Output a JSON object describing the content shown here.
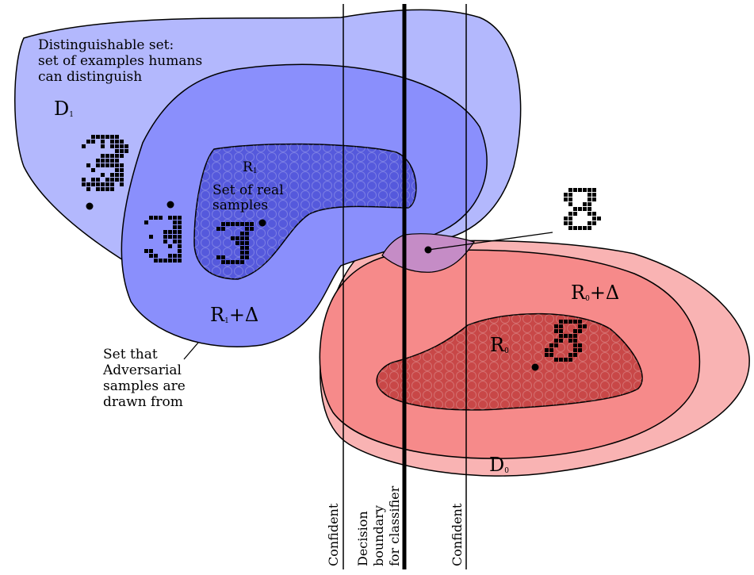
{
  "labels": {
    "distinguishable": [
      "Distinguishable set:",
      "set of examples humans",
      "can distinguish"
    ],
    "d1": "D",
    "d1_sub": "1",
    "r1": "R",
    "r1_sub": "1",
    "real_samples": [
      "Set of real",
      "samples"
    ],
    "r1_delta_main": "R",
    "r1_delta_sub": "1",
    "r1_delta_rest": "+Δ",
    "adversarial": [
      "Set that",
      "Adversarial",
      "samples are",
      "drawn from"
    ],
    "r0_delta_main": "R",
    "r0_delta_sub": "0",
    "r0_delta_rest": "+Δ",
    "r0": "R",
    "r0_sub": "0",
    "d0": "D",
    "d0_sub": "0",
    "confident_left": "Confident",
    "decision": [
      "Decision",
      "boundary",
      "for classifier"
    ],
    "confident_right": "Confident"
  },
  "colors": {
    "blue_outer": "#b3b8fd",
    "blue_mid": "#8a8ffc",
    "blue_inner": "#5559dc",
    "red_outer": "#f9b3b3",
    "red_mid": "#f68a8a",
    "red_inner": "#c84747",
    "overlap": "#c58cc6"
  }
}
